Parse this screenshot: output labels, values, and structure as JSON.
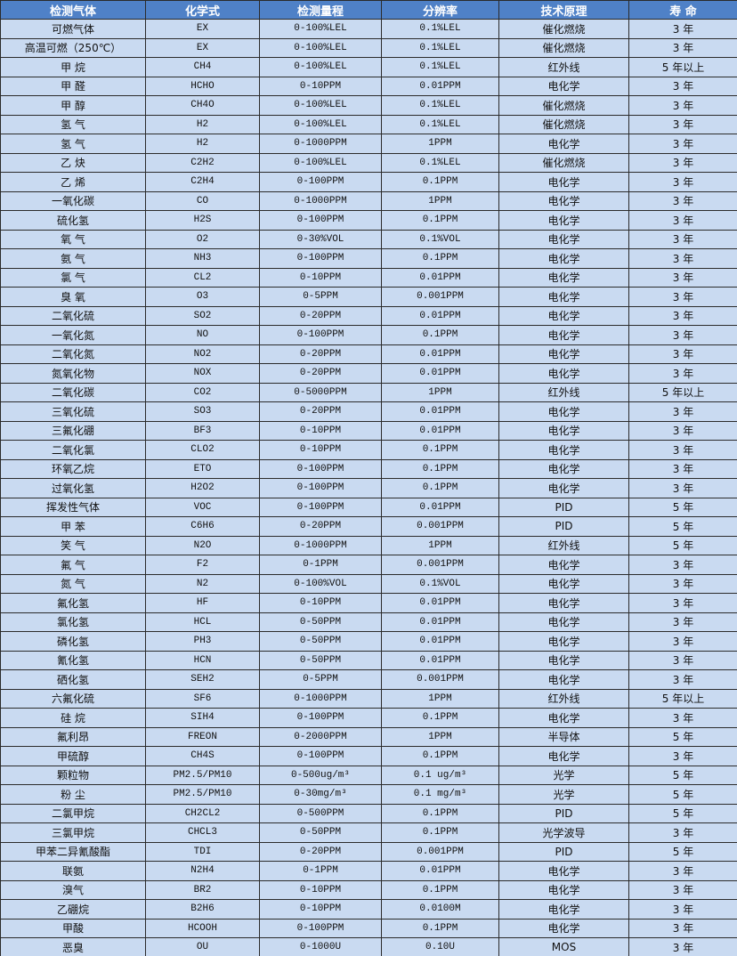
{
  "table": {
    "header": [
      "检测气体",
      "化学式",
      "检测量程",
      "分辨率",
      "技术原理",
      "寿 命"
    ],
    "rows": [
      [
        "可燃气体",
        "EX",
        "0-100%LEL",
        "0.1%LEL",
        "催化燃烧",
        "3 年"
      ],
      [
        "高温可燃（250℃）",
        "EX",
        "0-100%LEL",
        "0.1%LEL",
        "催化燃烧",
        "3 年"
      ],
      [
        "甲 烷",
        "CH4",
        "0-100%LEL",
        "0.1%LEL",
        "红外线",
        "5 年以上"
      ],
      [
        "甲 醛",
        "HCHO",
        "0-10PPM",
        "0.01PPM",
        "电化学",
        "3 年"
      ],
      [
        "甲 醇",
        "CH4O",
        "0-100%LEL",
        "0.1%LEL",
        "催化燃烧",
        "3 年"
      ],
      [
        "氢 气",
        "H2",
        "0-100%LEL",
        "0.1%LEL",
        "催化燃烧",
        "3 年"
      ],
      [
        "氢 气",
        "H2",
        "0-1000PPM",
        "1PPM",
        "电化学",
        "3 年"
      ],
      [
        "乙 炔",
        "C2H2",
        "0-100%LEL",
        "0.1%LEL",
        "催化燃烧",
        "3 年"
      ],
      [
        "乙 烯",
        "C2H4",
        "0-100PPM",
        "0.1PPM",
        "电化学",
        "3 年"
      ],
      [
        "一氧化碳",
        "CO",
        "0-1000PPM",
        "1PPM",
        "电化学",
        "3 年"
      ],
      [
        "硫化氢",
        "H2S",
        "0-100PPM",
        "0.1PPM",
        "电化学",
        "3 年"
      ],
      [
        "氧 气",
        "O2",
        "0-30%VOL",
        "0.1%VOL",
        "电化学",
        "3 年"
      ],
      [
        "氨 气",
        "NH3",
        "0-100PPM",
        "0.1PPM",
        "电化学",
        "3 年"
      ],
      [
        "氯 气",
        "CL2",
        "0-10PPM",
        "0.01PPM",
        "电化学",
        "3 年"
      ],
      [
        "臭 氧",
        "O3",
        "0-5PPM",
        "0.001PPM",
        "电化学",
        "3 年"
      ],
      [
        "二氧化硫",
        "SO2",
        "0-20PPM",
        "0.01PPM",
        "电化学",
        "3 年"
      ],
      [
        "一氧化氮",
        "NO",
        "0-100PPM",
        "0.1PPM",
        "电化学",
        "3 年"
      ],
      [
        "二氧化氮",
        "NO2",
        "0-20PPM",
        "0.01PPM",
        "电化学",
        "3 年"
      ],
      [
        "氮氧化物",
        "NOX",
        "0-20PPM",
        "0.01PPM",
        "电化学",
        "3 年"
      ],
      [
        "二氧化碳",
        "CO2",
        "0-5000PPM",
        "1PPM",
        "红外线",
        "5 年以上"
      ],
      [
        "三氧化硫",
        "SO3",
        "0-20PPM",
        "0.01PPM",
        "电化学",
        "3 年"
      ],
      [
        "三氟化硼",
        "BF3",
        "0-10PPM",
        "0.01PPM",
        "电化学",
        "3 年"
      ],
      [
        "二氧化氯",
        "CLO2",
        "0-10PPM",
        "0.1PPM",
        "电化学",
        "3 年"
      ],
      [
        "环氧乙烷",
        "ETO",
        "0-100PPM",
        "0.1PPM",
        "电化学",
        "3 年"
      ],
      [
        "过氧化氢",
        "H2O2",
        "0-100PPM",
        "0.1PPM",
        "电化学",
        "3 年"
      ],
      [
        "挥发性气体",
        "VOC",
        "0-100PPM",
        "0.01PPM",
        "PID",
        "5 年"
      ],
      [
        "甲 苯",
        "C6H6",
        "0-20PPM",
        "0.001PPM",
        "PID",
        "5 年"
      ],
      [
        "笑 气",
        "N2O",
        "0-1000PPM",
        "1PPM",
        "红外线",
        "5 年"
      ],
      [
        "氟 气",
        "F2",
        "0-1PPM",
        "0.001PPM",
        "电化学",
        "3 年"
      ],
      [
        "氮 气",
        "N2",
        "0-100%VOL",
        "0.1%VOL",
        "电化学",
        "3 年"
      ],
      [
        "氟化氢",
        "HF",
        "0-10PPM",
        "0.01PPM",
        "电化学",
        "3 年"
      ],
      [
        "氯化氢",
        "HCL",
        "0-50PPM",
        "0.01PPM",
        "电化学",
        "3 年"
      ],
      [
        "磷化氢",
        "PH3",
        "0-50PPM",
        "0.01PPM",
        "电化学",
        "3 年"
      ],
      [
        "氰化氢",
        "HCN",
        "0-50PPM",
        "0.01PPM",
        "电化学",
        "3 年"
      ],
      [
        "硒化氢",
        "SEH2",
        "0-5PPM",
        "0.001PPM",
        "电化学",
        "3 年"
      ],
      [
        "六氟化硫",
        "SF6",
        "0-1000PPM",
        "1PPM",
        "红外线",
        "5 年以上"
      ],
      [
        "硅 烷",
        "SIH4",
        "0-100PPM",
        "0.1PPM",
        "电化学",
        "3 年"
      ],
      [
        "氟利昂",
        "FREON",
        "0-2000PPM",
        "1PPM",
        "半导体",
        "5 年"
      ],
      [
        "甲硫醇",
        "CH4S",
        "0-100PPM",
        "0.1PPM",
        "电化学",
        "3 年"
      ],
      [
        "颗粒物",
        "PM2.5/PM10",
        "0-500ug/m³",
        "0.1 ug/m³",
        "光学",
        "5 年"
      ],
      [
        "粉 尘",
        "PM2.5/PM10",
        "0-30mg/m³",
        "0.1 mg/m³",
        "光学",
        "5 年"
      ],
      [
        "二氯甲烷",
        "CH2CL2",
        "0-500PPM",
        "0.1PPM",
        "PID",
        "5 年"
      ],
      [
        "三氯甲烷",
        "CHCL3",
        "0-50PPM",
        "0.1PPM",
        "光学波导",
        "3 年"
      ],
      [
        "甲苯二异氰酸酯",
        "TDI",
        "0-20PPM",
        "0.001PPM",
        "PID",
        "5 年"
      ],
      [
        "联氨",
        "N2H4",
        "0-1PPM",
        "0.01PPM",
        "电化学",
        "3 年"
      ],
      [
        "溴气",
        "BR2",
        "0-10PPM",
        "0.1PPM",
        "电化学",
        "3 年"
      ],
      [
        "乙硼烷",
        "B2H6",
        "0-10PPM",
        "0.0100M",
        "电化学",
        "3 年"
      ],
      [
        "甲酸",
        "HCOOH",
        "0-100PPM",
        "0.1PPM",
        "电化学",
        "3 年"
      ],
      [
        "恶臭",
        "OU",
        "0-1000U",
        "0.10U",
        "MOS",
        "3 年"
      ]
    ]
  }
}
